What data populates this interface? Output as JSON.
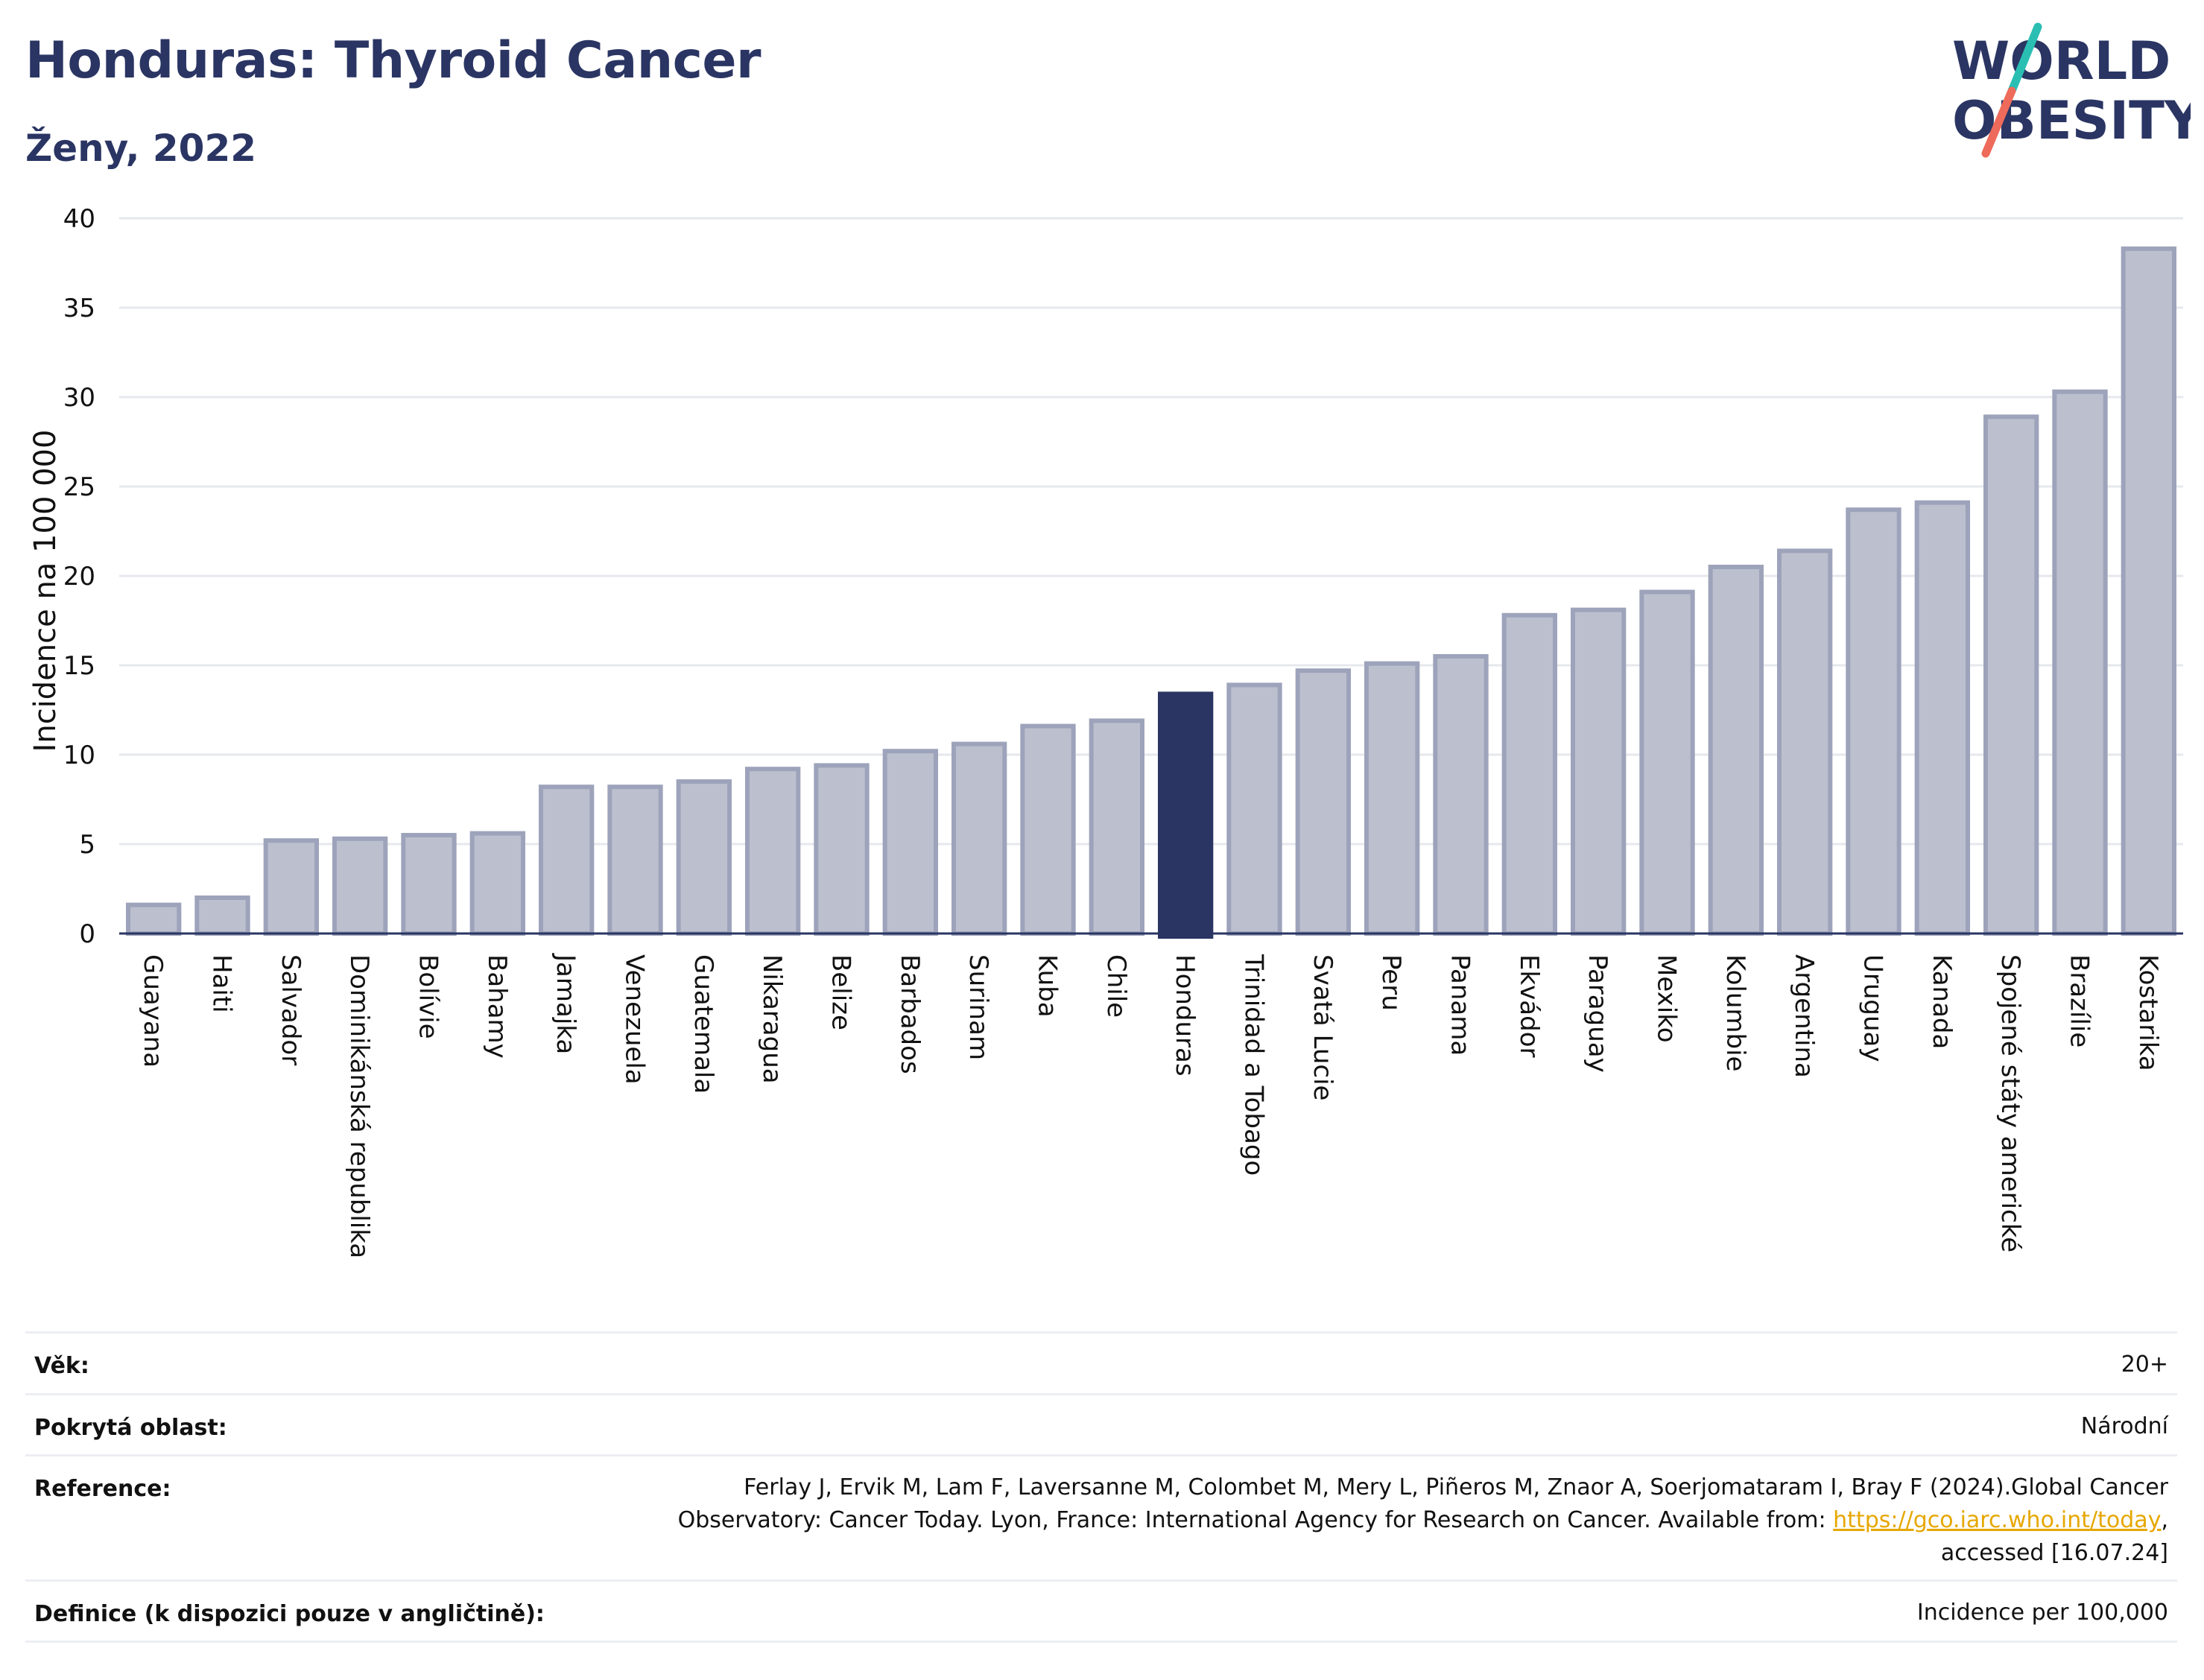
{
  "header": {
    "title": "Honduras: Thyroid Cancer",
    "subtitle": "Ženy, 2022"
  },
  "logo": {
    "line1": "WORLD",
    "line2": "OBESITY",
    "colors": {
      "text": "#2a3563",
      "slash_top": "#2bbfb3",
      "slash_bottom": "#ee6a5a"
    }
  },
  "colors": {
    "bar": "#bcc0ce",
    "bar_border": "#9da3ba",
    "highlight": "#2a3563",
    "grid": "#e6e8ee",
    "axis": "#2a3563",
    "link": "#e6a700"
  },
  "chart_data": {
    "type": "bar",
    "ylabel": "Incidence na 100 000",
    "ylim": [
      0,
      40
    ],
    "yticks": [
      0,
      5,
      10,
      15,
      20,
      25,
      30,
      35,
      40
    ],
    "highlight": "Honduras",
    "grid": true,
    "categories": [
      "Guayana",
      "Haiti",
      "Salvador",
      "Dominikánská republika",
      "Bolívie",
      "Bahamy",
      "Jamajka",
      "Venezuela",
      "Guatemala",
      "Nikaragua",
      "Belize",
      "Barbados",
      "Surinam",
      "Kuba",
      "Chile",
      "Honduras",
      "Trinidad a Tobago",
      "Svatá Lucie",
      "Peru",
      "Panama",
      "Ekvádor",
      "Paraguay",
      "Mexiko",
      "Kolumbie",
      "Argentina",
      "Uruguay",
      "Kanada",
      "Spojené státy americké",
      "Brazílie",
      "Kostarika"
    ],
    "values": [
      1.6,
      2.0,
      5.2,
      5.3,
      5.5,
      5.6,
      8.2,
      8.2,
      8.5,
      9.2,
      9.4,
      10.2,
      10.6,
      11.6,
      11.9,
      13.4,
      13.9,
      14.7,
      15.1,
      15.5,
      17.8,
      18.1,
      19.1,
      20.5,
      21.4,
      23.7,
      24.1,
      28.9,
      30.3,
      38.3
    ]
  },
  "meta": [
    {
      "label": "Věk:",
      "value": "20+"
    },
    {
      "label": "Pokrytá oblast:",
      "value": "Národní"
    },
    {
      "label": "Reference:",
      "value_line1": "Ferlay J, Ervik M, Lam F, Laversanne M, Colombet M, Mery L, Piñeros M, Znaor A, Soerjomataram I, Bray F (2024).Global Cancer",
      "value_line2_pre": "Observatory: Cancer Today. Lyon, France: International Agency for Research on Cancer. Available from: ",
      "link": "https://gco.iarc.who.int/today",
      "value_line2_post": ",",
      "value_line3": "accessed [16.07.24]"
    },
    {
      "label": "Definice (k dispozici pouze v angličtině):",
      "value": "Incidence per 100,000"
    }
  ]
}
